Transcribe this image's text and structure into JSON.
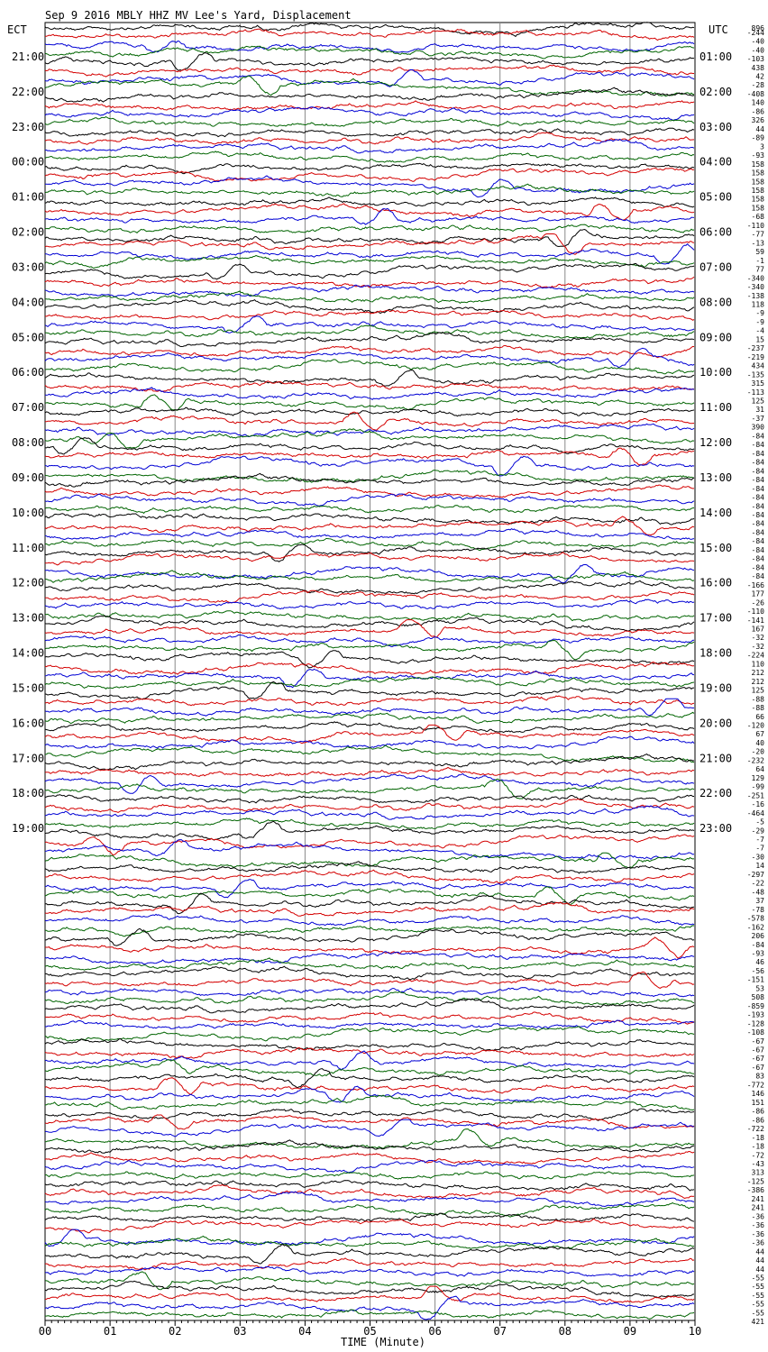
{
  "header": {
    "title": "Sep  9 2016 MBLY HHZ MV Lee's Yard, Displacement",
    "left_axis_label": "ECT",
    "right_axis_label": "UTC",
    "top_right_value": "896"
  },
  "chart_data": {
    "type": "line",
    "title": "Sep  9 2016 MBLY HHZ MV Lee's Yard, Displacement",
    "xlabel": "TIME (Minute)",
    "ylabel": "",
    "xlim": [
      0,
      10
    ],
    "x_ticks": [
      "00",
      "01",
      "02",
      "03",
      "04",
      "05",
      "06",
      "07",
      "08",
      "09",
      "10"
    ],
    "grid": true,
    "traces_per_hour": 4,
    "trace_colors": [
      "#000000",
      "#d40000",
      "#0000d4",
      "#006400"
    ],
    "left_hour_labels": [
      "21:00",
      "22:00",
      "23:00",
      "00:00",
      "01:00",
      "02:00",
      "03:00",
      "04:00",
      "05:00",
      "06:00",
      "07:00",
      "08:00",
      "09:00",
      "10:00",
      "11:00",
      "12:00",
      "13:00",
      "14:00",
      "15:00",
      "16:00",
      "17:00",
      "18:00",
      "19:00"
    ],
    "right_hour_labels": [
      "01:00",
      "02:00",
      "03:00",
      "04:00",
      "05:00",
      "06:00",
      "07:00",
      "08:00",
      "09:00",
      "10:00",
      "11:00",
      "12:00",
      "13:00",
      "14:00",
      "15:00",
      "16:00",
      "17:00",
      "18:00",
      "19:00",
      "20:00",
      "21:00",
      "22:00",
      "23:00"
    ],
    "trace_offsets": [
      "-244",
      "-40",
      "-40",
      "-103",
      "438",
      "42",
      "-28",
      "-408",
      "140",
      "-86",
      "326",
      "44",
      "-89",
      "3",
      "-93",
      "158",
      "158",
      "158",
      "158",
      "158",
      "158",
      "-68",
      "-110",
      "-77",
      "-13",
      "59",
      "-1",
      "77",
      "-340",
      "-340",
      "-138",
      "118",
      "-9",
      "-9",
      "-4",
      "15",
      "-237",
      "-219",
      "434",
      "-135",
      "315",
      "-113",
      "125",
      "31",
      "-37",
      "390",
      "-84",
      "-84",
      "-84",
      "-84",
      "-84",
      "-84",
      "-84",
      "-84",
      "-84",
      "-84",
      "-84",
      "-84",
      "-84",
      "-84",
      "-84",
      "-84",
      "-84",
      "-166",
      "177",
      "-26",
      "-110",
      "-141",
      "167",
      "-32",
      "-32",
      "-224",
      "110",
      "212",
      "212",
      "125",
      "-88",
      "-88",
      "66",
      "-120",
      "67",
      "40",
      "-20",
      "-232",
      "64",
      "129",
      "-99",
      "-251",
      "-16",
      "-464",
      "-5",
      "-29",
      "-7",
      "-7",
      "-30",
      "14",
      "-297",
      "-22",
      "-48",
      "37",
      "-78",
      "-578",
      "-162",
      "206",
      "-84",
      "-93",
      "46",
      "-56",
      "-151",
      "53",
      "508",
      "-859",
      "-193",
      "-128",
      "-108",
      "-67",
      "-67",
      "-67",
      "-67",
      "83",
      "-772",
      "146",
      "151",
      "-86",
      "-86",
      "-722",
      "-18",
      "-18",
      "-72",
      "-43",
      "313",
      "-125",
      "-386",
      "241",
      "241",
      "-36",
      "-36",
      "-36",
      "-36",
      "44",
      "44",
      "44",
      "-55",
      "-55",
      "-55",
      "-55",
      "-55",
      "421"
    ]
  }
}
